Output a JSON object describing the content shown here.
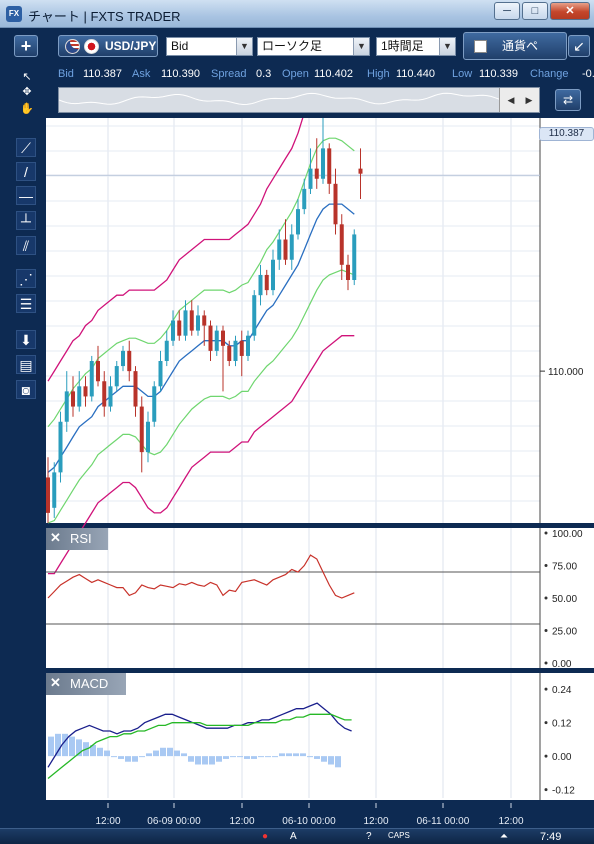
{
  "window": {
    "title": "チャート | FXTS TRADER",
    "app_icon": "FX",
    "buttons": {
      "minimize": "─",
      "maximize": "□",
      "close": "✕"
    }
  },
  "toolbar": {
    "add_label": "+",
    "pair": "USD/JPY",
    "price_type": "Bid",
    "chart_type": "ローソク足",
    "timeframe": "1時間足",
    "currency_button": "通貨ペ",
    "popout_icon": "↙"
  },
  "quote": {
    "bid_label": "Bid",
    "bid": "110.387",
    "ask_label": "Ask",
    "ask": "110.390",
    "spread_label": "Spread",
    "spread": "0.3",
    "open_label": "Open",
    "open": "110.402",
    "high_label": "High",
    "high": "110.440",
    "low_label": "Low",
    "low": "110.339",
    "change_label": "Change",
    "change": "-0."
  },
  "left_tools": [
    {
      "name": "pointer-icon",
      "glyph": "↖"
    },
    {
      "name": "crosshair-pointer-icon",
      "glyph": "✥"
    },
    {
      "name": "hand-icon",
      "glyph": "✋"
    },
    {
      "name": "pin-line-icon",
      "glyph": "⟋"
    },
    {
      "name": "trend-line-icon",
      "glyph": "/"
    },
    {
      "name": "horizontal-line-icon",
      "glyph": "—"
    },
    {
      "name": "vertical-line-icon",
      "glyph": "┴"
    },
    {
      "name": "parallel-lines-icon",
      "glyph": "⫽"
    },
    {
      "name": "fan-icon",
      "glyph": "⋰"
    },
    {
      "name": "fibonacci-icon",
      "glyph": "☰"
    },
    {
      "name": "arrow-down-icon",
      "glyph": "⬇"
    },
    {
      "name": "list-icon",
      "glyph": "▤"
    },
    {
      "name": "camera-icon",
      "glyph": "◙"
    }
  ],
  "main_chart": {
    "price_ticks": [
      "110.000"
    ],
    "current_price": "110.387"
  },
  "rsi": {
    "title": "RSI",
    "ticks": [
      "100.00",
      "75.00",
      "50.00",
      "25.00",
      "0.00"
    ]
  },
  "macd": {
    "title": "MACD",
    "ticks": [
      "0.24",
      "0.12",
      "0.00",
      "-0.12"
    ]
  },
  "time_axis": {
    "labels": [
      "12:00",
      "06-09 00:00",
      "12:00",
      "06-10 00:00",
      "12:00",
      "06-11 00:00",
      "12:00"
    ]
  },
  "taskbar": {
    "caps": "CAPS",
    "clock": "7:49"
  },
  "chart_data": [
    {
      "type": "candlestick",
      "title": "USD/JPY 1時間足",
      "y_tick_labels": [
        "110.000"
      ],
      "ylim": [
        109.7,
        110.5
      ],
      "current_price": 110.387,
      "x_labels": [
        "12:00",
        "06-09 00:00",
        "12:00",
        "06-10 00:00",
        "12:00",
        "06-11 00:00",
        "12:00"
      ],
      "candles": [
        [
          109.79,
          109.72,
          109.83,
          109.7
        ],
        [
          109.73,
          109.8,
          109.82,
          109.71
        ],
        [
          109.8,
          109.9,
          109.92,
          109.78
        ],
        [
          109.9,
          109.96,
          110.0,
          109.88
        ],
        [
          109.96,
          109.93,
          109.99,
          109.91
        ],
        [
          109.93,
          109.97,
          110.0,
          109.92
        ],
        [
          109.97,
          109.95,
          109.99,
          109.93
        ],
        [
          109.95,
          110.02,
          110.03,
          109.94
        ],
        [
          110.02,
          109.98,
          110.05,
          109.97
        ],
        [
          109.98,
          109.93,
          110.0,
          109.91
        ],
        [
          109.93,
          109.97,
          109.99,
          109.92
        ],
        [
          109.97,
          110.01,
          110.02,
          109.96
        ],
        [
          110.01,
          110.04,
          110.05,
          110.0
        ],
        [
          110.04,
          110.0,
          110.06,
          109.98
        ],
        [
          110.0,
          109.93,
          110.01,
          109.91
        ],
        [
          109.93,
          109.84,
          109.95,
          109.8
        ],
        [
          109.84,
          109.9,
          109.92,
          109.82
        ],
        [
          109.9,
          109.97,
          109.98,
          109.89
        ],
        [
          109.97,
          110.02,
          110.04,
          109.96
        ],
        [
          110.02,
          110.06,
          110.08,
          110.01
        ],
        [
          110.06,
          110.1,
          110.12,
          110.05
        ],
        [
          110.1,
          110.07,
          110.12,
          110.06
        ],
        [
          110.07,
          110.12,
          110.14,
          110.06
        ],
        [
          110.12,
          110.08,
          110.14,
          110.07
        ],
        [
          110.08,
          110.11,
          110.13,
          110.07
        ],
        [
          110.11,
          110.09,
          110.12,
          110.05
        ],
        [
          110.09,
          110.04,
          110.1,
          110.02
        ],
        [
          110.04,
          110.08,
          110.09,
          110.03
        ],
        [
          110.08,
          110.05,
          110.09,
          109.96
        ],
        [
          110.05,
          110.02,
          110.06,
          110.01
        ],
        [
          110.02,
          110.06,
          110.07,
          110.01
        ],
        [
          110.06,
          110.03,
          110.08,
          109.99
        ],
        [
          110.03,
          110.07,
          110.08,
          110.02
        ],
        [
          110.07,
          110.15,
          110.16,
          110.06
        ],
        [
          110.15,
          110.19,
          110.21,
          110.13
        ],
        [
          110.19,
          110.16,
          110.2,
          110.15
        ],
        [
          110.16,
          110.22,
          110.24,
          110.15
        ],
        [
          110.22,
          110.26,
          110.28,
          110.2
        ],
        [
          110.26,
          110.22,
          110.3,
          110.21
        ],
        [
          110.22,
          110.27,
          110.29,
          110.2
        ],
        [
          110.27,
          110.32,
          110.34,
          110.26
        ],
        [
          110.32,
          110.36,
          110.38,
          110.31
        ],
        [
          110.36,
          110.4,
          110.44,
          110.35
        ],
        [
          110.4,
          110.38,
          110.46,
          110.36
        ],
        [
          110.38,
          110.44,
          110.5,
          110.37
        ],
        [
          110.44,
          110.37,
          110.45,
          110.35
        ],
        [
          110.37,
          110.29,
          110.4,
          110.27
        ],
        [
          110.29,
          110.21,
          110.31,
          110.18
        ],
        [
          110.21,
          110.18,
          110.23,
          110.16
        ],
        [
          110.18,
          110.27,
          110.28,
          110.17
        ],
        [
          110.4,
          110.39,
          110.44,
          110.34
        ]
      ],
      "bollinger": {
        "mid": [
          109.8,
          109.81,
          109.83,
          109.85,
          109.87,
          109.89,
          109.9,
          109.91,
          109.93,
          109.94,
          109.95,
          109.96,
          109.97,
          109.97,
          109.97,
          109.96,
          109.95,
          109.95,
          109.96,
          109.98,
          110.0,
          110.02,
          110.03,
          110.04,
          110.05,
          110.06,
          110.06,
          110.06,
          110.06,
          110.05,
          110.05,
          110.06,
          110.06,
          110.08,
          110.1,
          110.12,
          110.13,
          110.15,
          110.17,
          110.19,
          110.21,
          110.24,
          110.27,
          110.3,
          110.32,
          110.33,
          110.33,
          110.33,
          110.32,
          110.31
        ],
        "upper": [
          109.98,
          110.0,
          110.02,
          110.04,
          110.06,
          110.07,
          110.09,
          110.1,
          110.12,
          110.13,
          110.14,
          110.15,
          110.15,
          110.16,
          110.16,
          110.16,
          110.16,
          110.16,
          110.17,
          110.18,
          110.2,
          110.22,
          110.23,
          110.24,
          110.25,
          110.26,
          110.26,
          110.26,
          110.26,
          110.26,
          110.27,
          110.28,
          110.29,
          110.31,
          110.33,
          110.36,
          110.38,
          110.4,
          110.42,
          110.44,
          110.47,
          110.51,
          110.55,
          110.58,
          110.59,
          110.59,
          110.59,
          110.58,
          110.57,
          110.56
        ],
        "lower": [
          109.6,
          109.6,
          109.62,
          109.64,
          109.66,
          109.68,
          109.7,
          109.72,
          109.74,
          109.75,
          109.76,
          109.77,
          109.78,
          109.78,
          109.77,
          109.75,
          109.73,
          109.72,
          109.72,
          109.73,
          109.75,
          109.77,
          109.79,
          109.81,
          109.82,
          109.83,
          109.84,
          109.84,
          109.84,
          109.84,
          109.85,
          109.86,
          109.86,
          109.88,
          109.89,
          109.9,
          109.91,
          109.92,
          109.93,
          109.94,
          109.96,
          109.98,
          110.0,
          110.02,
          110.04,
          110.05,
          110.06,
          110.07,
          110.07,
          110.07
        ]
      }
    },
    {
      "type": "line",
      "title": "RSI",
      "ylim": [
        0,
        100
      ],
      "y_tick_labels": [
        "100.00",
        "75.00",
        "50.00",
        "25.00",
        "0.00"
      ],
      "levels": [
        70,
        30
      ],
      "values": [
        50,
        55,
        60,
        63,
        66,
        68,
        65,
        62,
        64,
        62,
        60,
        58,
        58,
        52,
        54,
        60,
        58,
        57,
        60,
        59,
        58,
        61,
        60,
        62,
        60,
        59,
        62,
        60,
        52,
        56,
        55,
        62,
        63,
        64,
        62,
        60,
        64,
        66,
        68,
        72,
        70,
        75,
        83,
        80,
        70,
        60,
        52,
        50,
        52,
        54
      ]
    },
    {
      "type": "line",
      "title": "MACD",
      "ylim": [
        -0.15,
        0.28
      ],
      "y_tick_labels": [
        "0.24",
        "0.12",
        "0.00",
        "-0.12"
      ],
      "series": [
        {
          "values": [
            -0.04,
            0.0,
            0.04,
            0.07,
            0.09,
            0.1,
            0.11,
            0.1,
            0.09,
            0.09,
            0.08,
            0.09,
            0.09,
            0.1,
            0.12,
            0.13,
            0.14,
            0.15,
            0.15,
            0.14,
            0.13,
            0.12,
            0.11,
            0.1,
            0.1,
            0.1,
            0.1,
            0.11,
            0.11,
            0.12,
            0.12,
            0.13,
            0.13,
            0.14,
            0.15,
            0.16,
            0.17,
            0.17,
            0.18,
            0.19,
            0.17,
            0.15,
            0.12,
            0.1,
            0.09
          ]
        },
        {
          "values": [
            -0.08,
            -0.06,
            -0.04,
            -0.02,
            0.0,
            0.02,
            0.03,
            0.05,
            0.06,
            0.07,
            0.07,
            0.08,
            0.08,
            0.09,
            0.09,
            0.1,
            0.11,
            0.11,
            0.12,
            0.12,
            0.12,
            0.12,
            0.12,
            0.11,
            0.11,
            0.11,
            0.11,
            0.11,
            0.11,
            0.11,
            0.12,
            0.12,
            0.12,
            0.12,
            0.13,
            0.13,
            0.14,
            0.14,
            0.15,
            0.15,
            0.15,
            0.15,
            0.14,
            0.13,
            0.13
          ]
        }
      ],
      "histogram": [
        0.07,
        0.08,
        0.08,
        0.07,
        0.06,
        0.05,
        0.04,
        0.03,
        0.02,
        0.0,
        -0.01,
        -0.02,
        -0.02,
        0.0,
        0.01,
        0.02,
        0.03,
        0.03,
        0.02,
        0.01,
        -0.02,
        -0.03,
        -0.03,
        -0.03,
        -0.02,
        -0.01,
        0.0,
        0.0,
        -0.01,
        -0.01,
        0.0,
        0.0,
        0.0,
        0.01,
        0.01,
        0.01,
        0.01,
        0.0,
        -0.01,
        -0.02,
        -0.03,
        -0.04
      ]
    }
  ]
}
